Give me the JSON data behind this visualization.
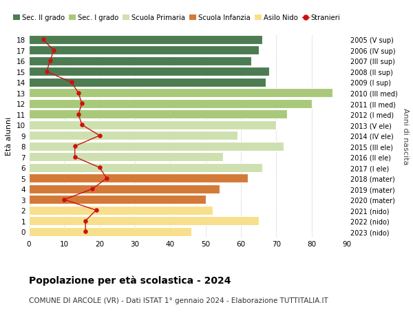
{
  "ages": [
    0,
    1,
    2,
    3,
    4,
    5,
    6,
    7,
    8,
    9,
    10,
    11,
    12,
    13,
    14,
    15,
    16,
    17,
    18
  ],
  "anni_nascita": [
    "2023 (nido)",
    "2022 (nido)",
    "2021 (nido)",
    "2020 (mater)",
    "2019 (mater)",
    "2018 (mater)",
    "2017 (I ele)",
    "2016 (II ele)",
    "2015 (III ele)",
    "2014 (IV ele)",
    "2013 (V ele)",
    "2012 (I med)",
    "2011 (II med)",
    "2010 (III med)",
    "2009 (I sup)",
    "2008 (II sup)",
    "2007 (III sup)",
    "2006 (IV sup)",
    "2005 (V sup)"
  ],
  "bar_values": [
    46,
    65,
    52,
    50,
    54,
    62,
    66,
    55,
    72,
    59,
    70,
    73,
    80,
    86,
    67,
    68,
    63,
    65,
    66
  ],
  "stranieri": [
    16,
    16,
    19,
    10,
    18,
    22,
    20,
    13,
    13,
    20,
    15,
    14,
    15,
    14,
    12,
    5,
    6,
    7,
    4
  ],
  "bar_colors": [
    "#f7df8c",
    "#f7df8c",
    "#f7df8c",
    "#d47a38",
    "#d47a38",
    "#d47a38",
    "#cfe0b0",
    "#cfe0b0",
    "#cfe0b0",
    "#cfe0b0",
    "#cfe0b0",
    "#a8c97a",
    "#a8c97a",
    "#a8c97a",
    "#4d7c52",
    "#4d7c52",
    "#4d7c52",
    "#4d7c52",
    "#4d7c52"
  ],
  "legend_labels": [
    "Sec. II grado",
    "Sec. I grado",
    "Scuola Primaria",
    "Scuola Infanzia",
    "Asilo Nido",
    "Stranieri"
  ],
  "legend_colors": [
    "#4d7c52",
    "#a8c97a",
    "#cfe0b0",
    "#d47a38",
    "#f7df8c",
    "#cc1111"
  ],
  "stranieri_color": "#cc1111",
  "ylabel_left": "Età alunni",
  "ylabel_right": "Anni di nascita",
  "title_main": "Popolazione per età scolastica - 2024",
  "title_sub": "COMUNE DI ARCOLE (VR) - Dati ISTAT 1° gennaio 2024 - Elaborazione TUTTITALIA.IT",
  "xlim": [
    0,
    90
  ],
  "bg_color": "#ffffff",
  "bar_edge_color": "white",
  "grid_color": "#cccccc"
}
